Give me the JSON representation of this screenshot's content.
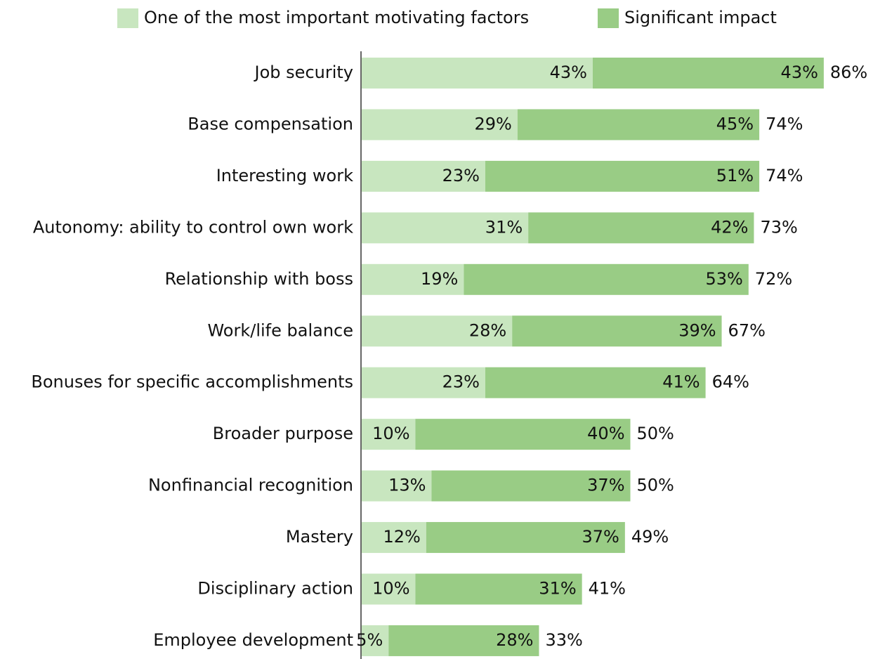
{
  "chart_data": {
    "type": "stacked_barh",
    "categories": [
      "Job security",
      "Base compensation",
      "Interesting work",
      "Autonomy: ability to control own work",
      "Relationship with boss",
      "Work/life balance",
      "Bonuses for specific accomplishments",
      "Broader purpose",
      "Nonfinancial recognition",
      "Mastery",
      "Disciplinary action",
      "Employee development"
    ],
    "series": [
      {
        "name": "One of the most important motivating factors",
        "color": "#c8e6bf",
        "values": [
          43,
          29,
          23,
          31,
          19,
          28,
          23,
          10,
          13,
          12,
          10,
          5
        ],
        "value_labels": [
          "43%",
          "29%",
          "23%",
          "31%",
          "19%",
          "28%",
          "23%",
          "10%",
          "13%",
          "12%",
          "10%",
          "5%"
        ]
      },
      {
        "name": "Significant impact",
        "color": "#99cc85",
        "values": [
          43,
          45,
          51,
          42,
          53,
          39,
          41,
          40,
          37,
          37,
          31,
          28
        ],
        "value_labels": [
          "43%",
          "45%",
          "51%",
          "42%",
          "53%",
          "39%",
          "41%",
          "40%",
          "37%",
          "37%",
          "31%",
          "28%"
        ]
      }
    ],
    "totals": [
      86,
      74,
      74,
      73,
      72,
      67,
      64,
      50,
      50,
      49,
      41,
      33
    ],
    "total_labels": [
      "86%",
      "74%",
      "74%",
      "73%",
      "72%",
      "67%",
      "64%",
      "50%",
      "50%",
      "49%",
      "41%",
      "33%"
    ],
    "legend": "top"
  }
}
